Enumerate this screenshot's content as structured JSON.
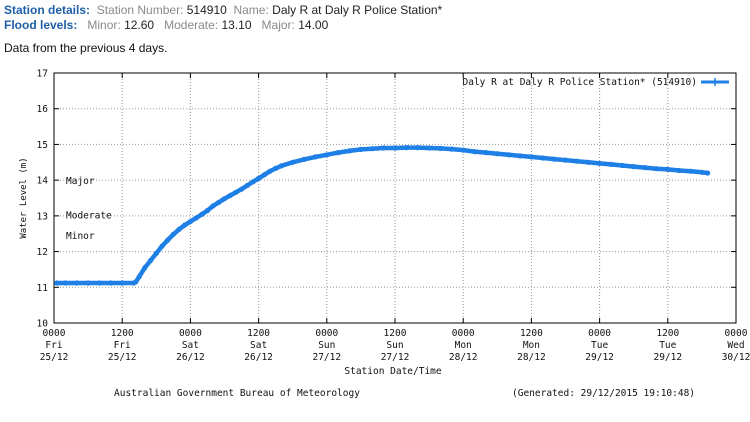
{
  "header": {
    "station_details_label": "Station details:",
    "station_number_label": "Station Number:",
    "station_number": "514910",
    "name_label": "Name:",
    "name": "Daly R at Daly R Police Station*",
    "flood_levels_label": "Flood levels:",
    "minor_label": "Minor:",
    "minor": "12.60",
    "moderate_label": "Moderate:",
    "moderate": "13.10",
    "major_label": "Major:",
    "major": "14.00",
    "note": "Data from the previous 4 days."
  },
  "footer": {
    "left": "Australian Government Bureau of Meteorology",
    "right": "(Generated: 29/12/2015 19:10:48)"
  },
  "colors": {
    "series": "#1e7fe6",
    "grid": "#9a9a9a",
    "header_label": "#1f5fa8"
  },
  "chart_data": {
    "type": "line",
    "title": "",
    "xlabel": "Station Date/Time",
    "ylabel": "Water Level (m)",
    "ylim": [
      10,
      17
    ],
    "yticks": [
      10,
      11,
      12,
      13,
      14,
      15,
      16,
      17
    ],
    "xlim_hours": [
      0,
      120
    ],
    "grid": true,
    "legend": {
      "label": "Daly R at Daly R Police Station* (514910)",
      "placement": "top-right"
    },
    "xticks": [
      {
        "h": 0,
        "time": "0000",
        "day": "Fri",
        "date": "25/12"
      },
      {
        "h": 12,
        "time": "1200",
        "day": "Fri",
        "date": "25/12"
      },
      {
        "h": 24,
        "time": "0000",
        "day": "Sat",
        "date": "26/12"
      },
      {
        "h": 36,
        "time": "1200",
        "day": "Sat",
        "date": "26/12"
      },
      {
        "h": 48,
        "time": "0000",
        "day": "Sun",
        "date": "27/12"
      },
      {
        "h": 60,
        "time": "1200",
        "day": "Sun",
        "date": "27/12"
      },
      {
        "h": 72,
        "time": "0000",
        "day": "Mon",
        "date": "28/12"
      },
      {
        "h": 84,
        "time": "1200",
        "day": "Mon",
        "date": "28/12"
      },
      {
        "h": 96,
        "time": "0000",
        "day": "Tue",
        "date": "29/12"
      },
      {
        "h": 108,
        "time": "1200",
        "day": "Tue",
        "date": "29/12"
      },
      {
        "h": 120,
        "time": "0000",
        "day": "Wed",
        "date": "30/12"
      }
    ],
    "flood_markers": [
      {
        "label": "Major",
        "value": 14.0
      },
      {
        "label": "Moderate",
        "value": 13.1
      },
      {
        "label": "Minor",
        "value": 12.6
      }
    ],
    "series": [
      {
        "name": "Daly R at Daly R Police Station* (514910)",
        "points": [
          [
            0.5,
            11.12
          ],
          [
            2,
            11.12
          ],
          [
            4,
            11.12
          ],
          [
            6,
            11.12
          ],
          [
            8,
            11.12
          ],
          [
            10,
            11.12
          ],
          [
            12,
            11.12
          ],
          [
            14,
            11.12
          ],
          [
            14.4,
            11.15
          ],
          [
            15,
            11.3
          ],
          [
            16,
            11.55
          ],
          [
            17,
            11.75
          ],
          [
            18,
            11.95
          ],
          [
            19,
            12.15
          ],
          [
            20,
            12.32
          ],
          [
            21,
            12.48
          ],
          [
            22,
            12.62
          ],
          [
            23,
            12.74
          ],
          [
            24,
            12.84
          ],
          [
            25,
            12.94
          ],
          [
            26,
            13.04
          ],
          [
            27,
            13.15
          ],
          [
            28,
            13.28
          ],
          [
            29,
            13.38
          ],
          [
            30,
            13.48
          ],
          [
            31,
            13.57
          ],
          [
            32,
            13.66
          ],
          [
            33,
            13.75
          ],
          [
            34,
            13.85
          ],
          [
            35,
            13.95
          ],
          [
            36,
            14.05
          ],
          [
            37,
            14.15
          ],
          [
            38,
            14.25
          ],
          [
            39,
            14.33
          ],
          [
            40,
            14.4
          ],
          [
            42,
            14.5
          ],
          [
            44,
            14.58
          ],
          [
            46,
            14.65
          ],
          [
            48,
            14.71
          ],
          [
            50,
            14.77
          ],
          [
            52,
            14.82
          ],
          [
            54,
            14.86
          ],
          [
            56,
            14.88
          ],
          [
            58,
            14.9
          ],
          [
            60,
            14.9
          ],
          [
            62,
            14.91
          ],
          [
            64,
            14.91
          ],
          [
            66,
            14.9
          ],
          [
            68,
            14.89
          ],
          [
            70,
            14.87
          ],
          [
            72,
            14.84
          ],
          [
            74,
            14.8
          ],
          [
            76,
            14.77
          ],
          [
            78,
            14.74
          ],
          [
            80,
            14.71
          ],
          [
            82,
            14.68
          ],
          [
            84,
            14.65
          ],
          [
            86,
            14.62
          ],
          [
            88,
            14.59
          ],
          [
            90,
            14.56
          ],
          [
            92,
            14.53
          ],
          [
            94,
            14.5
          ],
          [
            96,
            14.47
          ],
          [
            98,
            14.44
          ],
          [
            100,
            14.41
          ],
          [
            102,
            14.38
          ],
          [
            104,
            14.35
          ],
          [
            106,
            14.32
          ],
          [
            108,
            14.3
          ],
          [
            110,
            14.27
          ],
          [
            112,
            14.25
          ],
          [
            114,
            14.22
          ],
          [
            115,
            14.2
          ]
        ]
      }
    ]
  }
}
